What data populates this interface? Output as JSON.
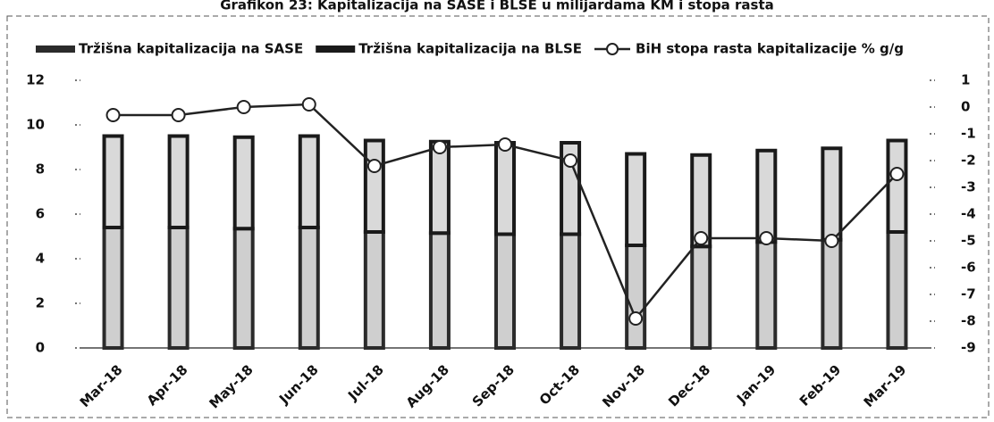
{
  "chart_data": {
    "type": "bar",
    "title": "Grafikon 23: Kapitalizacija na SASE i BLSE u milijardama KM i stopa rasta",
    "categories": [
      "Mar-18",
      "Apr-18",
      "May-18",
      "Jun-18",
      "Jul-18",
      "Aug-18",
      "Sep-18",
      "Oct-18",
      "Nov-18",
      "Dec-18",
      "Jan-19",
      "Feb-19",
      "Mar-19"
    ],
    "stacked": true,
    "series": [
      {
        "name": "Tržišna kapitalizacija na SASE",
        "color": "#2b2b2b",
        "values": [
          5.4,
          5.4,
          5.35,
          5.4,
          5.2,
          5.15,
          5.1,
          5.1,
          4.6,
          4.55,
          4.75,
          4.85,
          5.2
        ]
      },
      {
        "name": "Tržišna kapitalizacija na BLSE",
        "color": "#1a1a1a",
        "values": [
          4.1,
          4.1,
          4.1,
          4.1,
          4.1,
          4.1,
          4.1,
          4.1,
          4.1,
          4.1,
          4.1,
          4.1,
          4.1
        ]
      },
      {
        "name": "BiH stopa rasta kapitalizacije % g/g",
        "color": "#222222",
        "axis": "y2",
        "kind": "line",
        "values": [
          -0.3,
          -0.3,
          0,
          0.1,
          -2.2,
          -1.5,
          -1.4,
          -2.0,
          -7.9,
          -4.9,
          -4.9,
          -5.0,
          -2.5
        ]
      }
    ],
    "ylim": [
      0,
      12
    ],
    "yticks": [
      0,
      2,
      4,
      6,
      8,
      10,
      12
    ],
    "y2lim": [
      -9,
      1
    ],
    "y2ticks": [
      -9,
      -8,
      -7,
      -6,
      -5,
      -4,
      -3,
      -2,
      -1,
      0,
      1
    ],
    "grid": false,
    "legend": "top"
  }
}
